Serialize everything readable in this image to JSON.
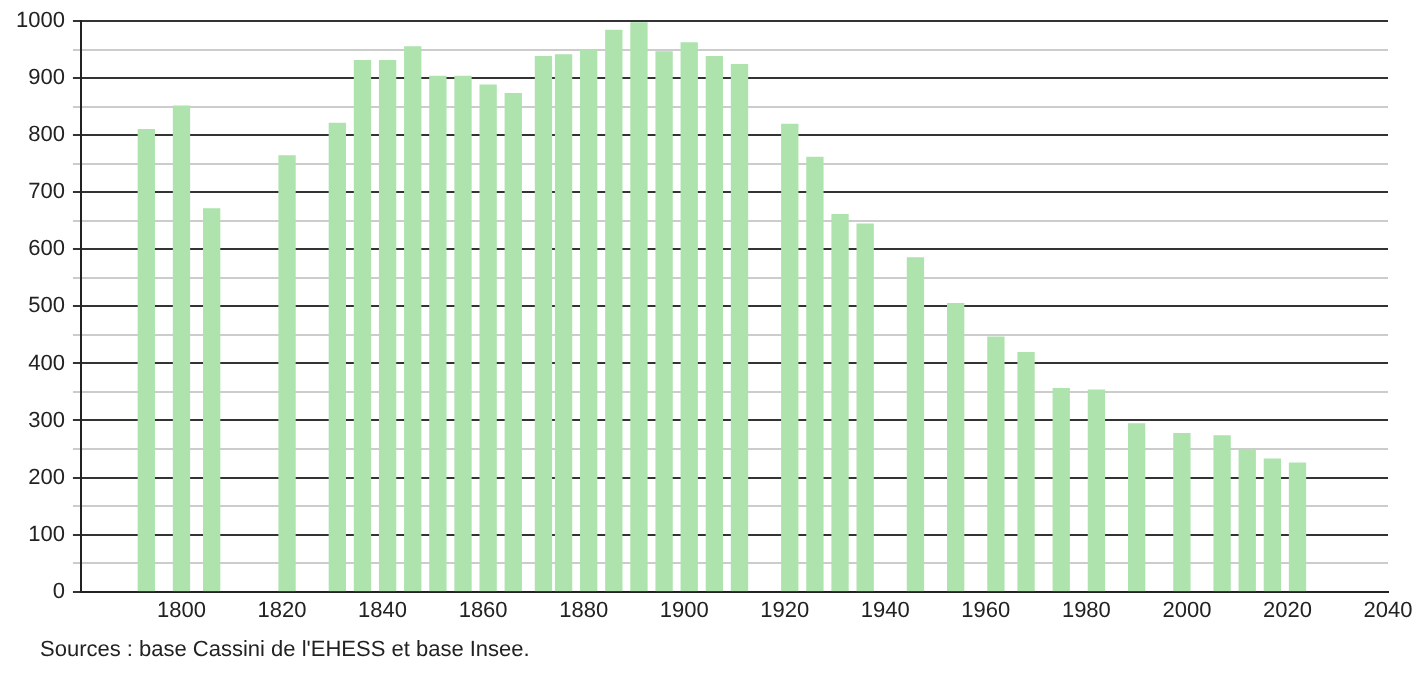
{
  "chart_data": {
    "type": "bar",
    "x": [
      1793,
      1800,
      1806,
      1821,
      1831,
      1836,
      1841,
      1846,
      1851,
      1856,
      1861,
      1866,
      1872,
      1876,
      1881,
      1886,
      1891,
      1896,
      1901,
      1906,
      1911,
      1921,
      1926,
      1931,
      1936,
      1946,
      1954,
      1962,
      1968,
      1975,
      1982,
      1990,
      1999,
      2007,
      2012,
      2017,
      2022
    ],
    "values": [
      810,
      851,
      671,
      764,
      821,
      931,
      931,
      955,
      903,
      903,
      888,
      873,
      938,
      941,
      950,
      984,
      997,
      946,
      962,
      938,
      924,
      819,
      761,
      661,
      644,
      585,
      505,
      446,
      419,
      356,
      353,
      294,
      277,
      273,
      247,
      232,
      225
    ],
    "color": "#aee3ae",
    "xlim": [
      1780,
      2040
    ],
    "xticks": [
      1800,
      1820,
      1840,
      1860,
      1880,
      1900,
      1920,
      1940,
      1960,
      1980,
      2000,
      2020,
      2040
    ],
    "ylim": [
      0,
      1000
    ],
    "yticks": [
      0,
      {
        "value": 50,
        "label": null
      },
      100,
      {
        "value": 150,
        "label": null
      },
      200,
      {
        "value": 250,
        "label": null
      },
      300,
      {
        "value": 350,
        "label": null
      },
      400,
      {
        "value": 450,
        "label": null
      },
      500,
      {
        "value": 550,
        "label": null
      },
      600,
      {
        "value": 650,
        "label": null
      },
      700,
      {
        "value": 750,
        "label": null
      },
      800,
      {
        "value": 850,
        "label": null
      },
      900,
      {
        "value": 950,
        "label": null
      },
      1000
    ],
    "grid": "y",
    "annotations": [
      "Sources : base Cassini de l'EHESS et base Insee."
    ]
  }
}
